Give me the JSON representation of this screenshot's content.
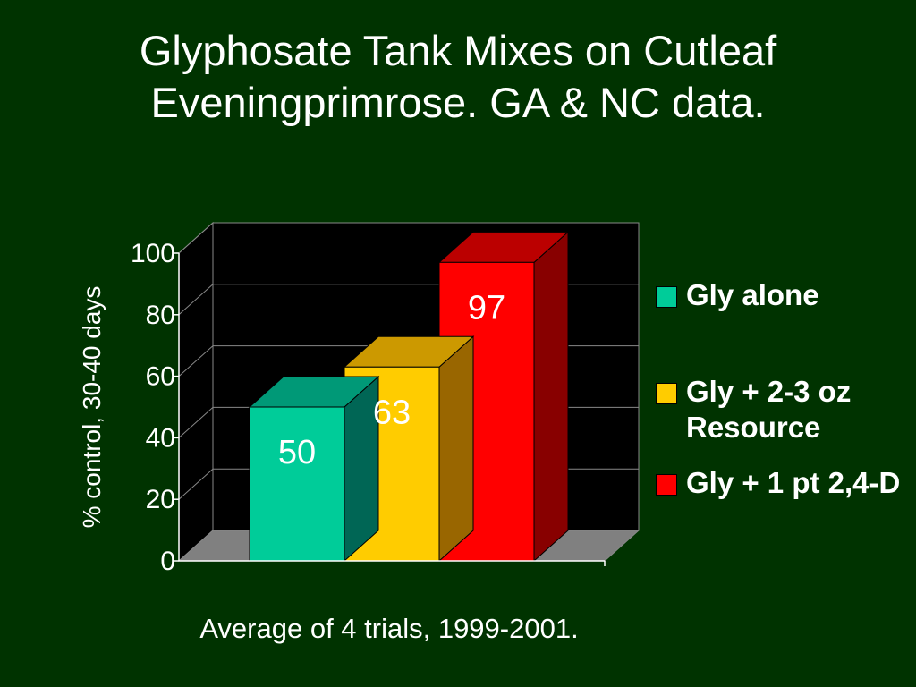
{
  "slide": {
    "title_lines": [
      "Glyphosate Tank Mixes on Cutleaf",
      "Eveningprimrose.  GA & NC data."
    ],
    "footnote": "Average of 4 trials, 1999-2001.",
    "background_color": "#003300"
  },
  "chart_data": {
    "type": "bar",
    "title": "",
    "xlabel": "",
    "ylabel": "% control, 30-40 days",
    "ylim": [
      0,
      100
    ],
    "yticks": [
      "0",
      "20",
      "40",
      "60",
      "80",
      "100"
    ],
    "grid": true,
    "style": "3d",
    "legend_position": "right",
    "series": [
      {
        "name": "Gly alone",
        "value": 50,
        "label": "50",
        "color": "#00cc99",
        "top_color": "#009977",
        "side_color": "#006655"
      },
      {
        "name": "Gly + 2-3 oz Resource",
        "value": 63,
        "label": "63",
        "color": "#ffcc00",
        "top_color": "#cc9900",
        "side_color": "#996600"
      },
      {
        "name": "Gly + 1 pt 2,4-D",
        "value": 97,
        "label": "97",
        "color": "#ff0000",
        "top_color": "#bb0000",
        "side_color": "#880000"
      }
    ]
  }
}
